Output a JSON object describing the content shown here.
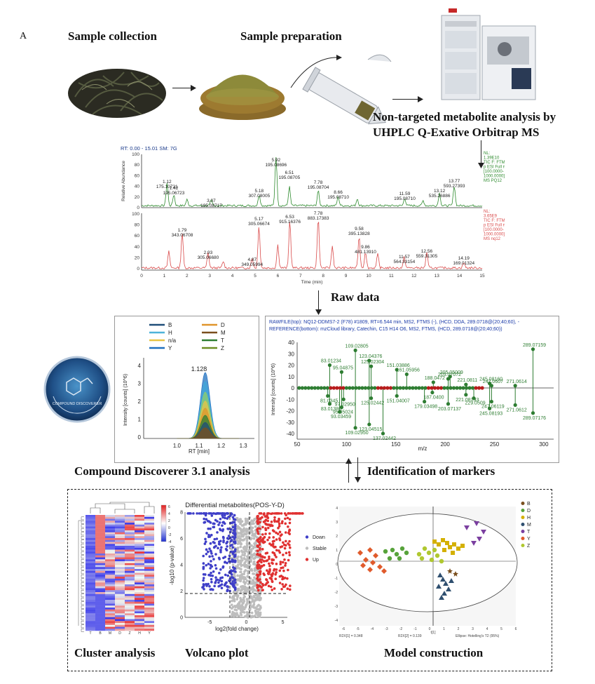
{
  "panel_label": "A",
  "workflow": {
    "sample_collection": "Sample collection",
    "sample_preparation": "Sample preparation",
    "ms_line1": "Non-targeted metabolite analysis by",
    "ms_line2": "UHPLC Q-Exative Orbitrap MS",
    "raw_data": "Raw data",
    "compound_discoverer": "Compound Discoverer 3.1 analysis",
    "identification": "Identification of markers",
    "cluster": "Cluster analysis",
    "volcano": "Volcano plot",
    "model": "Model construction"
  },
  "chromatogram": {
    "header": "RT: 0.00 - 15.01   SM: 7G",
    "top_info": [
      "NL:",
      "1.39E10",
      "TIC F: FTMS +",
      "p ESI Full ms",
      "[100.0000-",
      "1000.0000]",
      "MS PQ12"
    ],
    "bottom_info": [
      "NL:",
      "3.65E9",
      "TIC F: FTMS -",
      "p ESI Full ms",
      "[100.0000-",
      "1000.0000]",
      "MS nq12"
    ],
    "ylabel": "Relative Abundance",
    "xlabel": "Time (min)",
    "yticks": [
      "100",
      "80",
      "60",
      "40",
      "20",
      "0"
    ],
    "xticks": [
      "0",
      "1",
      "2",
      "3",
      "4",
      "5",
      "6",
      "7",
      "8",
      "9",
      "10",
      "11",
      "12",
      "13",
      "14",
      "15"
    ],
    "top_peaks": [
      {
        "rt": "1.12",
        "mz": "175.10721"
      },
      {
        "rt": "1.42",
        "mz": "195.06723"
      },
      {
        "rt": "3.07",
        "mz": "195.08717"
      },
      {
        "rt": "5.18",
        "mz": "307.08005"
      },
      {
        "rt": "5.92",
        "mz": "195.08696"
      },
      {
        "rt": "6.51",
        "mz": "195.08705"
      },
      {
        "rt": "7.78",
        "mz": "195.08704"
      },
      {
        "rt": "8.66",
        "mz": "195.08710"
      },
      {
        "rt": "11.59",
        "mz": "195.08710"
      },
      {
        "rt": "13.12",
        "mz": "535.26886"
      },
      {
        "rt": "13.77",
        "mz": "593.27393"
      }
    ],
    "bottom_peaks": [
      {
        "rt": "1.79",
        "mz": "343.06708"
      },
      {
        "rt": "2.93",
        "mz": "305.06680"
      },
      {
        "rt": "4.87",
        "mz": "349.05994"
      },
      {
        "rt": "5.17",
        "mz": "305.06674"
      },
      {
        "rt": "6.53",
        "mz": "915.16376"
      },
      {
        "rt": "7.78",
        "mz": "883.17383"
      },
      {
        "rt": "9.58",
        "mz": "395.13828"
      },
      {
        "rt": "9.86",
        "mz": "481.13910"
      },
      {
        "rt": "11.57",
        "mz": "564.33154"
      },
      {
        "rt": "12.56",
        "mz": "559.31305"
      },
      {
        "rt": "14.19",
        "mz": "169.01324"
      }
    ]
  },
  "peak_plot": {
    "legend": [
      "B",
      "D",
      "H",
      "M",
      "n/a",
      "T",
      "Y",
      "Z"
    ],
    "legend_colors": [
      "#1f4e79",
      "#e0952b",
      "#4fb3d9",
      "#7a4f1e",
      "#e8c547",
      "#2e7d32",
      "#1e6fbf",
      "#6b8e23"
    ],
    "ylabel": "Intensity [counts] (10^6)",
    "xlabel": "RT [min]",
    "yticks": [
      "4",
      "3",
      "2",
      "1",
      "0"
    ],
    "xticks": [
      "1.0",
      "1.1",
      "1.2",
      "1.3"
    ],
    "apex_label": "1.128"
  },
  "mirror_plot": {
    "header1": "RAWFILE(top): NQ12-DDMS7-2 (F78) #1809, RT=6.544 min, MS2, FTMS (-), (HCD, DDA, 289.0718@(20;40;60), -",
    "header2": "REFERENCE(bottom): mzCloud library, Catechin, C15 H14 O6, MS2, FTMS, (HCD, 289.0718@(20;40;60))",
    "ylabel": "Intensity [counts] (10^6)",
    "xlabel": "m/z",
    "yticks": [
      "40",
      "30",
      "20",
      "10",
      "0",
      "-10",
      "-20",
      "-30",
      "-40"
    ],
    "xticks": [
      "50",
      "100",
      "150",
      "200",
      "250",
      "300"
    ],
    "top_labels": [
      "109.02805",
      "83.01234",
      "95.04875",
      "125.02304",
      "123.04376",
      "151.03886",
      "161.05956",
      "205.05009",
      "203.07072",
      "188.0472",
      "221.0811",
      "245.08160",
      "289.07159",
      "271.0614",
      "247.0607"
    ],
    "bottom_labels": [
      "81.0345",
      "97.02950",
      "83.01386",
      "95.05024",
      "93.03459",
      "123.04515",
      "109.02950",
      "125.02442",
      "151.04007",
      "137.02442",
      "187.0400",
      "179.03498",
      "203.07137",
      "221.08193",
      "229.0509",
      "245.08193",
      "247.06119",
      "271.0612",
      "289.07176"
    ]
  },
  "heatmap": {
    "scale_labels": [
      "6",
      "4",
      "2",
      "0",
      "-2",
      "-4"
    ],
    "columns": [
      "T",
      "B",
      "M",
      "D",
      "Z",
      "H",
      "Y"
    ]
  },
  "volcano": {
    "title": "Differential metabolites(POS-Y-D)",
    "ylabel": "-log10 (p-value)",
    "xlabel": "log2(fold change)",
    "yticks": [
      "8",
      "6",
      "4",
      "2",
      "0"
    ],
    "xticks": [
      "-5",
      "0",
      "5"
    ],
    "legend": [
      "Down",
      "Stable",
      "Up"
    ],
    "legend_colors": [
      "#3f3fc8",
      "#bdbdbd",
      "#e03030"
    ]
  },
  "pca": {
    "legend": [
      "B",
      "D",
      "H",
      "M",
      "T",
      "Y",
      "Z"
    ],
    "legend_colors": [
      "#7a4f1e",
      "#57a33b",
      "#d4b000",
      "#2f4f6f",
      "#7b3fa0",
      "#e05a2b",
      "#b0c830"
    ],
    "xlabel": "t[1]",
    "footer": [
      "R2X[1] = 0.348",
      "R2X[2] = 0.139",
      "Ellipse: Hotelling's T2 (95%)"
    ],
    "yticks": [
      "4",
      "3",
      "2",
      "1",
      "0",
      "-1",
      "-2",
      "-3",
      "-4"
    ],
    "xticks": [
      "-6",
      "-5",
      "-4",
      "-3",
      "-2",
      "-1",
      "0",
      "1",
      "2",
      "3",
      "4",
      "5",
      "6"
    ]
  },
  "logo_text": "COMPOUND DISCOVERER"
}
